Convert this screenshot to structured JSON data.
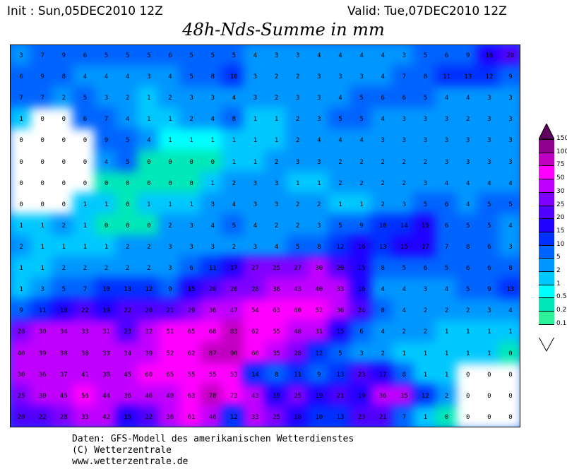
{
  "header": {
    "init": "Init : Sun,05DEC2010 12Z",
    "valid": "Valid: Tue,07DEC2010 12Z",
    "title": "48h-Nds-Summe in mm"
  },
  "legend": {
    "labels": [
      "150",
      "100",
      "75",
      "50",
      "30",
      "25",
      "20",
      "15",
      "10",
      "5",
      "2",
      "1",
      "0.5",
      "0.2",
      "0.1"
    ],
    "thresholds": [
      0.1,
      0.2,
      0.5,
      1,
      2,
      5,
      10,
      15,
      20,
      25,
      30,
      50,
      75,
      100,
      150
    ],
    "colors": [
      "#ffffff",
      "#2ef29a",
      "#00e8b8",
      "#00ffff",
      "#00c8ff",
      "#0096ff",
      "#0064ff",
      "#0030ff",
      "#2000ff",
      "#5000ff",
      "#8000ff",
      "#c000ff",
      "#ff00ff",
      "#c000c0",
      "#900090",
      "#600060"
    ]
  },
  "map": {
    "precip_grid": [
      [
        3,
        7,
        9,
        6,
        5,
        5,
        5,
        6,
        5,
        5,
        5,
        4,
        3,
        3,
        4,
        4,
        4,
        4,
        3,
        5,
        6,
        9,
        16,
        20
      ],
      [
        6,
        9,
        8,
        4,
        4,
        4,
        3,
        4,
        5,
        8,
        10,
        3,
        2,
        2,
        3,
        3,
        3,
        4,
        7,
        8,
        11,
        13,
        12,
        9
      ],
      [
        7,
        7,
        2,
        5,
        3,
        2,
        1,
        2,
        3,
        3,
        4,
        3,
        2,
        3,
        3,
        4,
        5,
        6,
        6,
        5,
        4,
        4,
        3,
        3
      ],
      [
        1,
        0,
        0,
        6,
        7,
        4,
        1,
        1,
        2,
        4,
        8,
        1,
        1,
        2,
        3,
        5,
        5,
        4,
        3,
        3,
        3,
        2,
        3,
        3
      ],
      [
        0,
        0,
        0,
        0,
        9,
        5,
        4,
        0.5,
        0.5,
        0.5,
        1,
        1,
        1,
        2,
        4,
        4,
        4,
        3,
        3,
        3,
        3,
        3,
        3,
        3
      ],
      [
        0,
        0,
        0,
        0,
        4,
        5,
        0.3,
        0.3,
        0.3,
        0.3,
        1,
        1,
        2,
        3,
        3,
        2,
        2,
        2,
        2,
        2,
        3,
        3,
        3,
        3
      ],
      [
        0,
        0,
        0,
        0,
        0.3,
        0.3,
        0.3,
        0.3,
        0.3,
        1,
        2,
        3,
        3,
        1,
        1,
        2,
        2,
        2,
        2,
        3,
        4,
        4,
        4,
        4
      ],
      [
        0,
        0,
        0,
        1,
        1,
        0.3,
        1,
        1,
        1,
        3,
        4,
        3,
        3,
        2,
        2,
        1,
        1,
        2,
        3,
        5,
        6,
        4,
        5,
        5
      ],
      [
        1,
        1,
        2,
        1,
        0.3,
        0.3,
        0.3,
        2,
        3,
        4,
        5,
        4,
        2,
        2,
        3,
        5,
        9,
        10,
        14,
        15,
        6,
        5,
        5,
        4
      ],
      [
        2,
        1,
        1,
        1,
        1,
        2,
        2,
        3,
        3,
        3,
        2,
        3,
        4,
        5,
        8,
        12,
        16,
        13,
        15,
        17,
        7,
        8,
        6,
        3
      ],
      [
        1,
        1,
        2,
        2,
        2,
        2,
        2,
        3,
        6,
        11,
        17,
        27,
        25,
        27,
        30,
        20,
        15,
        8,
        5,
        6,
        5,
        6,
        6,
        8
      ],
      [
        1,
        3,
        5,
        7,
        10,
        13,
        12,
        9,
        15,
        20,
        26,
        28,
        36,
        43,
        40,
        33,
        16,
        4,
        4,
        3,
        4,
        5,
        9,
        13
      ],
      [
        9,
        11,
        18,
        22,
        19,
        22,
        20,
        21,
        29,
        36,
        47,
        54,
        63,
        60,
        52,
        36,
        24,
        8,
        4,
        2,
        2,
        2,
        3,
        4
      ],
      [
        28,
        30,
        34,
        33,
        31,
        23,
        32,
        51,
        65,
        68,
        83,
        62,
        55,
        48,
        31,
        15,
        6,
        4,
        2,
        2,
        1,
        1,
        1,
        1
      ],
      [
        40,
        39,
        38,
        38,
        33,
        34,
        39,
        52,
        62,
        87,
        90,
        60,
        35,
        28,
        12,
        5,
        3,
        2,
        1,
        1,
        1,
        1,
        1,
        0.3
      ],
      [
        30,
        36,
        37,
        41,
        38,
        45,
        60,
        65,
        55,
        55,
        53,
        14,
        8,
        11,
        9,
        13,
        23,
        17,
        8,
        1,
        1,
        0,
        0,
        0
      ],
      [
        25,
        30,
        45,
        56,
        44,
        36,
        46,
        49,
        63,
        78,
        73,
        43,
        19,
        25,
        19,
        21,
        19,
        36,
        35,
        12,
        2,
        0,
        0,
        0
      ],
      [
        20,
        22,
        28,
        33,
        42,
        15,
        22,
        36,
        61,
        46,
        12,
        33,
        25,
        18,
        10,
        13,
        23,
        21,
        7,
        1,
        0.3,
        0,
        0,
        0
      ]
    ]
  },
  "footer": {
    "line1": "Daten: GFS-Modell des amerikanischen Wetterdienstes",
    "line2": "(C) Wetterzentrale",
    "line3": "www.wetterzentrale.de"
  }
}
